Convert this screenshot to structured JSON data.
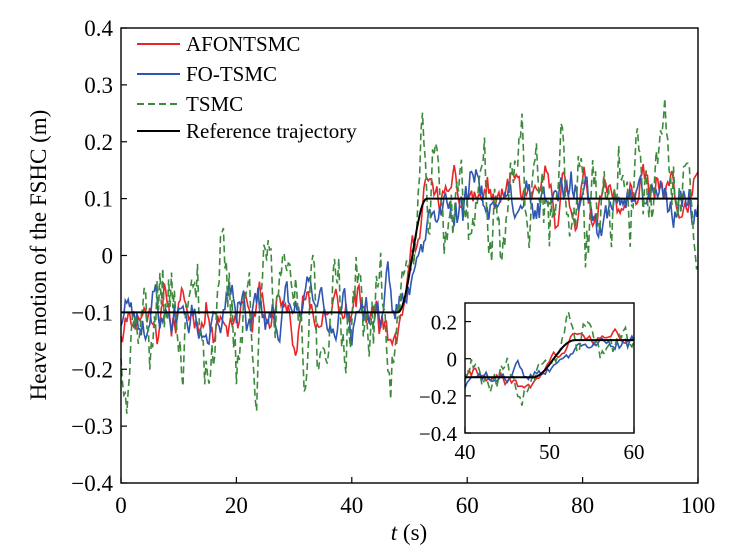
{
  "chart_data": {
    "type": "line",
    "title": "",
    "xlabel_italic": "t",
    "xlabel_rest": " (s)",
    "ylabel": "Heave motion of the FSHC (m)",
    "xlim": [
      0,
      100
    ],
    "ylim": [
      -0.4,
      0.4
    ],
    "xticks": [
      0,
      20,
      40,
      60,
      80,
      100
    ],
    "yticks": [
      -0.4,
      -0.3,
      -0.2,
      -0.1,
      0,
      0.1,
      0.2,
      0.3,
      0.4
    ],
    "xtick_labels": [
      "0",
      "20",
      "40",
      "60",
      "80",
      "100"
    ],
    "ytick_labels": [
      "−0.4",
      "−0.3",
      "−0.2",
      "−0.1",
      "0",
      "0.1",
      "0.2",
      "0.3",
      "0.4"
    ],
    "legend_position": "top-left",
    "series": [
      {
        "name": "AFONTSMC",
        "color": "#e8262a",
        "dash": "solid",
        "amplitude": 0.045,
        "seed": 11
      },
      {
        "name": "FO-TSMC",
        "color": "#2f56b0",
        "dash": "solid",
        "amplitude": 0.05,
        "seed": 23
      },
      {
        "name": "TSMC",
        "color": "#3d8a3d",
        "dash": "dashed",
        "amplitude": 0.12,
        "seed": 37
      },
      {
        "name": "Reference trajectory",
        "color": "#000000",
        "dash": "solid",
        "reference": true,
        "low": -0.1,
        "high": 0.1,
        "step_start": 48,
        "step_end": 53
      }
    ],
    "inset": {
      "xlim": [
        40,
        60
      ],
      "ylim": [
        -0.4,
        0.3
      ],
      "xticks": [
        40,
        50,
        60
      ],
      "yticks": [
        -0.4,
        -0.2,
        0,
        0.2
      ],
      "xtick_labels": [
        "40",
        "50",
        "60"
      ],
      "ytick_labels": [
        "−0.4",
        "−0.2",
        "0",
        "0.2"
      ],
      "position": "bottom-right"
    }
  }
}
